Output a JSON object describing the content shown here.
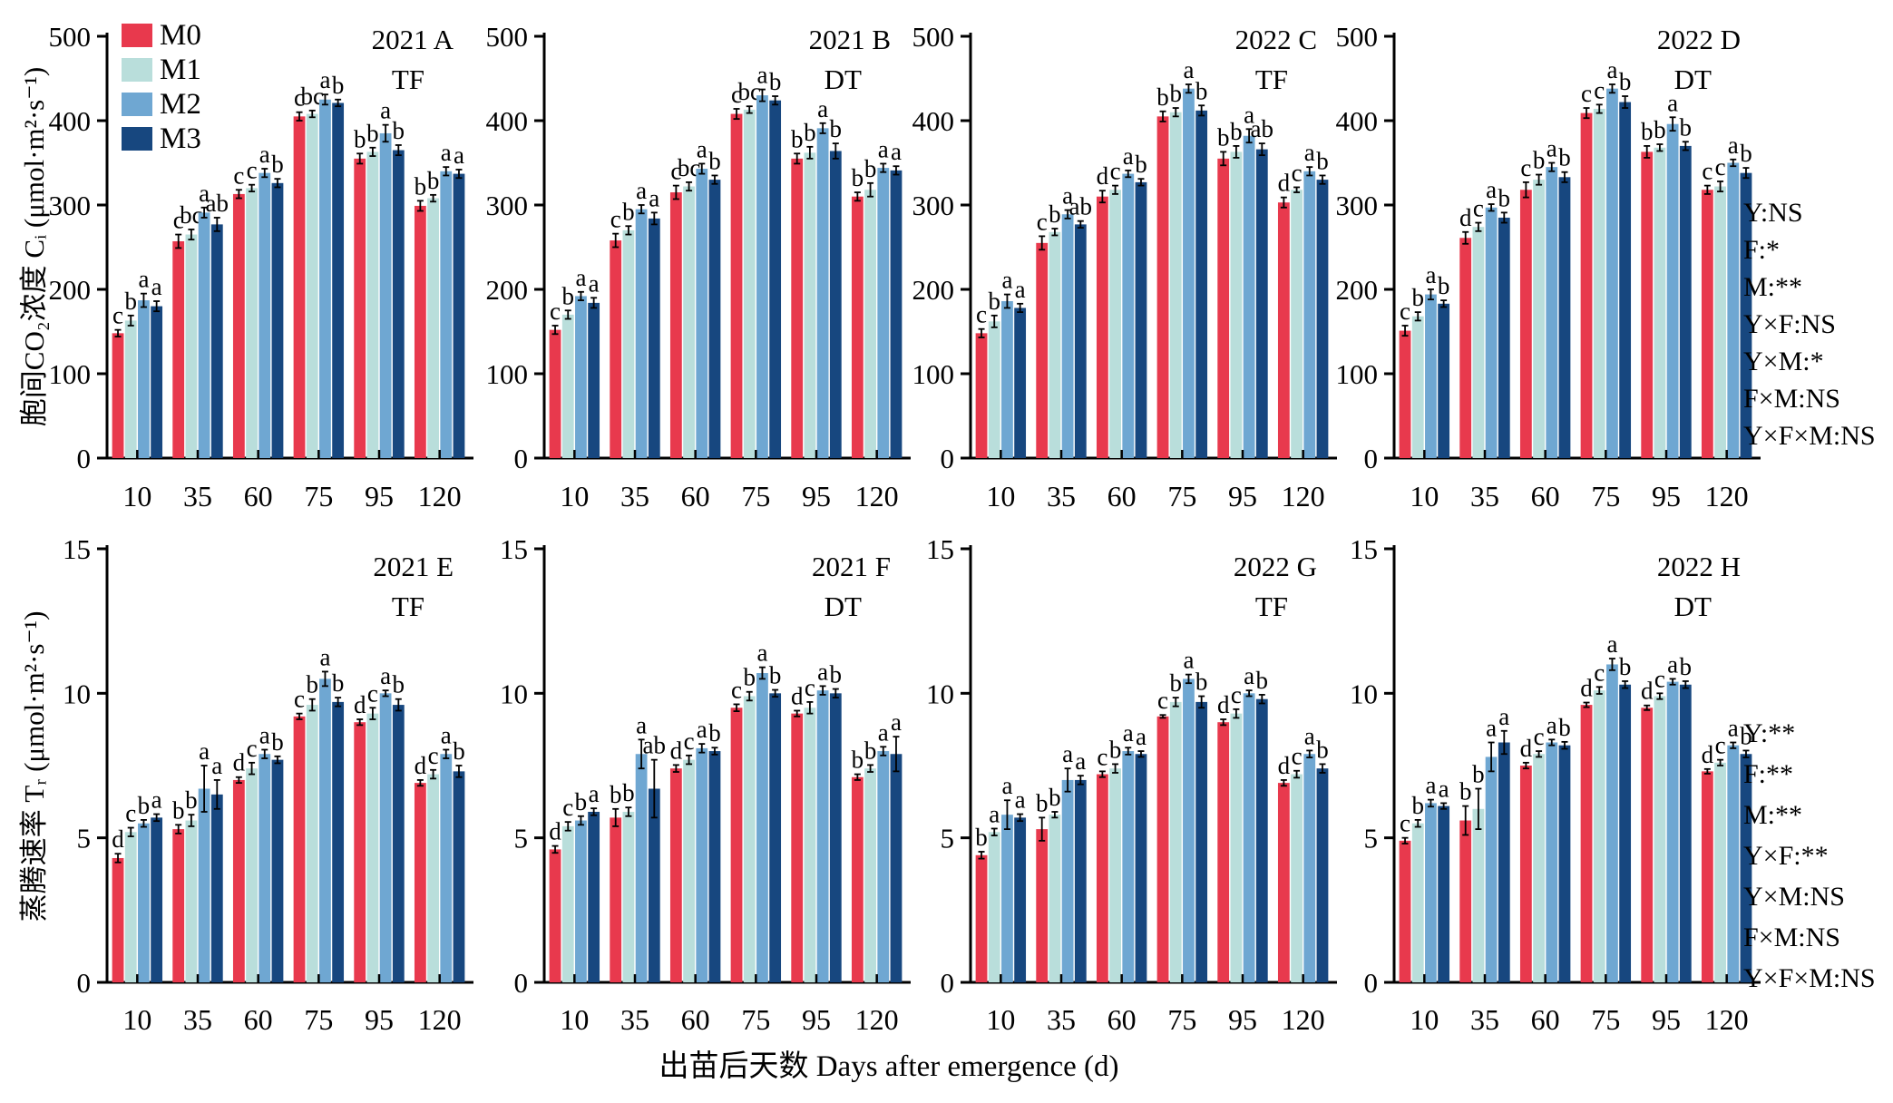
{
  "labels": {
    "x": "出苗后天数 Days after emergence (d)",
    "y_top": "胞间CO₂浓度 Cᵢ (μmol·m²·s⁻¹)",
    "y_bottom": "蒸腾速率 Tᵣ (μmol·m²·s⁻¹)"
  },
  "legend": {
    "items": [
      {
        "label": "M0",
        "color": "#e8394d"
      },
      {
        "label": "M1",
        "color": "#b9dedb"
      },
      {
        "label": "M2",
        "color": "#6fa7d2"
      },
      {
        "label": "M3",
        "color": "#17477f"
      }
    ]
  },
  "stats": {
    "top": [
      "Y:NS",
      "F:*",
      "M:**",
      "Y×F:NS",
      "Y×M:*",
      "F×M:NS",
      "Y×F×M:NS"
    ],
    "bottom": [
      "Y:**",
      "F:**",
      "M:**",
      "Y×F:**",
      "Y×M:NS",
      "F×M:NS",
      "Y×F×M:NS"
    ]
  },
  "chart_data": [
    {
      "id": "A",
      "type": "bar",
      "row": "top",
      "year": "2021",
      "panel_letter": "A",
      "treatment": "TF",
      "ylim": [
        0,
        500
      ],
      "yticks": [
        0,
        100,
        200,
        300,
        400,
        500
      ],
      "categories": [
        10,
        35,
        60,
        75,
        95,
        120
      ],
      "show_legend": true,
      "series": [
        {
          "name": "M0",
          "values": [
            148,
            257,
            313,
            405,
            355,
            299
          ],
          "errors": [
            4,
            8,
            5,
            5,
            6,
            6
          ],
          "letters": [
            "c",
            "c",
            "c",
            "c",
            "b",
            "b"
          ]
        },
        {
          "name": "M1",
          "values": [
            163,
            265,
            320,
            408,
            363,
            308
          ],
          "errors": [
            6,
            6,
            4,
            4,
            5,
            4
          ],
          "letters": [
            "b",
            "bc",
            "c",
            "bc",
            "b",
            "b"
          ]
        },
        {
          "name": "M2",
          "values": [
            187,
            291,
            338,
            425,
            385,
            340
          ],
          "errors": [
            8,
            6,
            5,
            6,
            10,
            5
          ],
          "letters": [
            "a",
            "a",
            "a",
            "a",
            "a",
            "a"
          ]
        },
        {
          "name": "M3",
          "values": [
            180,
            277,
            326,
            421,
            365,
            337
          ],
          "errors": [
            6,
            8,
            5,
            4,
            6,
            5
          ],
          "letters": [
            "a",
            "ab",
            "b",
            "b",
            "b",
            "a"
          ]
        }
      ]
    },
    {
      "id": "B",
      "type": "bar",
      "row": "top",
      "year": "2021",
      "panel_letter": "B",
      "treatment": "DT",
      "ylim": [
        0,
        500
      ],
      "yticks": [
        0,
        100,
        200,
        300,
        400,
        500
      ],
      "categories": [
        10,
        35,
        60,
        75,
        95,
        120
      ],
      "show_legend": false,
      "series": [
        {
          "name": "M0",
          "values": [
            152,
            258,
            315,
            408,
            355,
            310
          ],
          "errors": [
            5,
            8,
            8,
            6,
            6,
            5
          ],
          "letters": [
            "c",
            "c",
            "c",
            "c",
            "b",
            "b"
          ]
        },
        {
          "name": "M1",
          "values": [
            170,
            270,
            322,
            413,
            362,
            318
          ],
          "errors": [
            5,
            5,
            5,
            4,
            7,
            8
          ],
          "letters": [
            "b",
            "b",
            "bc",
            "bc",
            "b",
            "b"
          ]
        },
        {
          "name": "M2",
          "values": [
            192,
            295,
            343,
            430,
            391,
            344
          ],
          "errors": [
            5,
            5,
            6,
            7,
            6,
            5
          ],
          "letters": [
            "a",
            "a",
            "a",
            "a",
            "a",
            "a"
          ]
        },
        {
          "name": "M3",
          "values": [
            184,
            284,
            330,
            424,
            364,
            341
          ],
          "errors": [
            6,
            7,
            5,
            5,
            9,
            5
          ],
          "letters": [
            "a",
            "a",
            "b",
            "b",
            "b",
            "a"
          ]
        }
      ]
    },
    {
      "id": "C",
      "type": "bar",
      "row": "top",
      "year": "2022",
      "panel_letter": "C",
      "treatment": "TF",
      "ylim": [
        0,
        500
      ],
      "yticks": [
        0,
        100,
        200,
        300,
        400,
        500
      ],
      "categories": [
        10,
        35,
        60,
        75,
        95,
        120
      ],
      "show_legend": false,
      "series": [
        {
          "name": "M0",
          "values": [
            148,
            255,
            310,
            405,
            355,
            303
          ],
          "errors": [
            5,
            8,
            7,
            6,
            8,
            6
          ],
          "letters": [
            "c",
            "c",
            "d",
            "b",
            "b",
            "d"
          ]
        },
        {
          "name": "M1",
          "values": [
            162,
            268,
            318,
            410,
            363,
            318
          ],
          "errors": [
            7,
            4,
            5,
            5,
            7,
            3
          ],
          "letters": [
            "b",
            "b",
            "c",
            "b",
            "b",
            "c"
          ]
        },
        {
          "name": "M2",
          "values": [
            186,
            289,
            337,
            438,
            382,
            340
          ],
          "errors": [
            8,
            5,
            4,
            5,
            8,
            5
          ],
          "letters": [
            "a",
            "a",
            "a",
            "a",
            "a",
            "a"
          ]
        },
        {
          "name": "M3",
          "values": [
            178,
            277,
            327,
            412,
            366,
            330
          ],
          "errors": [
            5,
            4,
            4,
            6,
            7,
            5
          ],
          "letters": [
            "a",
            "ab",
            "b",
            "b",
            "ab",
            "b"
          ]
        }
      ]
    },
    {
      "id": "D",
      "type": "bar",
      "row": "top",
      "year": "2022",
      "panel_letter": "D",
      "treatment": "DT",
      "ylim": [
        0,
        500
      ],
      "yticks": [
        0,
        100,
        200,
        300,
        400,
        500
      ],
      "categories": [
        10,
        35,
        60,
        75,
        95,
        120
      ],
      "show_legend": false,
      "stats_ref": "top",
      "series": [
        {
          "name": "M0",
          "values": [
            151,
            261,
            318,
            409,
            363,
            318
          ],
          "errors": [
            6,
            7,
            9,
            6,
            7,
            5
          ],
          "letters": [
            "c",
            "d",
            "c",
            "c",
            "b",
            "c"
          ]
        },
        {
          "name": "M1",
          "values": [
            168,
            274,
            330,
            414,
            368,
            322
          ],
          "errors": [
            5,
            5,
            6,
            5,
            4,
            6
          ],
          "letters": [
            "b",
            "c",
            "b",
            "c",
            "b",
            "c"
          ]
        },
        {
          "name": "M2",
          "values": [
            194,
            297,
            345,
            438,
            396,
            350
          ],
          "errors": [
            6,
            4,
            5,
            5,
            8,
            4
          ],
          "letters": [
            "a",
            "a",
            "a",
            "a",
            "a",
            "a"
          ]
        },
        {
          "name": "M3",
          "values": [
            183,
            285,
            333,
            422,
            370,
            338
          ],
          "errors": [
            4,
            6,
            6,
            7,
            5,
            6
          ],
          "letters": [
            "b",
            "b",
            "b",
            "b",
            "b",
            "b"
          ]
        }
      ]
    },
    {
      "id": "E",
      "type": "bar",
      "row": "bottom",
      "year": "2021",
      "panel_letter": "E",
      "treatment": "TF",
      "ylim": [
        0,
        15
      ],
      "yticks": [
        0,
        5,
        10,
        15
      ],
      "categories": [
        10,
        35,
        60,
        75,
        95,
        120
      ],
      "show_legend": false,
      "series": [
        {
          "name": "M0",
          "values": [
            4.3,
            5.3,
            7.0,
            9.2,
            9.0,
            6.9
          ],
          "errors": [
            0.15,
            0.15,
            0.1,
            0.1,
            0.1,
            0.1
          ],
          "letters": [
            "d",
            "b",
            "d",
            "c",
            "d",
            "d"
          ]
        },
        {
          "name": "M1",
          "values": [
            5.2,
            5.6,
            7.4,
            9.6,
            9.3,
            7.2
          ],
          "errors": [
            0.15,
            0.2,
            0.2,
            0.2,
            0.2,
            0.15
          ],
          "letters": [
            "c",
            "b",
            "c",
            "b",
            "c",
            "c"
          ]
        },
        {
          "name": "M2",
          "values": [
            5.5,
            6.7,
            7.9,
            10.5,
            10.0,
            7.9
          ],
          "errors": [
            0.12,
            0.8,
            0.15,
            0.25,
            0.1,
            0.15
          ],
          "letters": [
            "b",
            "a",
            "a",
            "a",
            "a",
            "a"
          ]
        },
        {
          "name": "M3",
          "values": [
            5.7,
            6.5,
            7.7,
            9.7,
            9.6,
            7.3
          ],
          "errors": [
            0.12,
            0.5,
            0.12,
            0.15,
            0.2,
            0.2
          ],
          "letters": [
            "a",
            "a",
            "b",
            "b",
            "b",
            "b"
          ]
        }
      ]
    },
    {
      "id": "F",
      "type": "bar",
      "row": "bottom",
      "year": "2021",
      "panel_letter": "F",
      "treatment": "DT",
      "ylim": [
        0,
        15
      ],
      "yticks": [
        0,
        5,
        10,
        15
      ],
      "categories": [
        10,
        35,
        60,
        75,
        95,
        120
      ],
      "show_legend": false,
      "series": [
        {
          "name": "M0",
          "values": [
            4.6,
            5.7,
            7.4,
            9.5,
            9.3,
            7.1
          ],
          "errors": [
            0.12,
            0.3,
            0.12,
            0.12,
            0.1,
            0.1
          ],
          "letters": [
            "d",
            "b",
            "d",
            "c",
            "d",
            "b"
          ]
        },
        {
          "name": "M1",
          "values": [
            5.4,
            5.9,
            7.7,
            9.9,
            9.5,
            7.4
          ],
          "errors": [
            0.15,
            0.15,
            0.15,
            0.15,
            0.2,
            0.12
          ],
          "letters": [
            "c",
            "b",
            "c",
            "b",
            "c",
            "b"
          ]
        },
        {
          "name": "M2",
          "values": [
            5.6,
            7.9,
            8.1,
            10.7,
            10.1,
            8.0
          ],
          "errors": [
            0.15,
            0.5,
            0.15,
            0.2,
            0.15,
            0.15
          ],
          "letters": [
            "b",
            "a",
            "a",
            "a",
            "a",
            "a"
          ]
        },
        {
          "name": "M3",
          "values": [
            5.9,
            6.7,
            8.0,
            10.0,
            10.0,
            7.9
          ],
          "errors": [
            0.12,
            1.0,
            0.12,
            0.12,
            0.15,
            0.6
          ],
          "letters": [
            "a",
            "ab",
            "b",
            "b",
            "b",
            "a"
          ]
        }
      ]
    },
    {
      "id": "G",
      "type": "bar",
      "row": "bottom",
      "year": "2022",
      "panel_letter": "G",
      "treatment": "TF",
      "ylim": [
        0,
        15
      ],
      "yticks": [
        0,
        5,
        10,
        15
      ],
      "categories": [
        10,
        35,
        60,
        75,
        95,
        120
      ],
      "show_legend": false,
      "series": [
        {
          "name": "M0",
          "values": [
            4.4,
            5.3,
            7.2,
            9.2,
            9.0,
            6.9
          ],
          "errors": [
            0.12,
            0.4,
            0.1,
            0.05,
            0.1,
            0.1
          ],
          "letters": [
            "b",
            "b",
            "c",
            "c",
            "d",
            "d"
          ]
        },
        {
          "name": "M1",
          "values": [
            5.2,
            5.8,
            7.4,
            9.7,
            9.3,
            7.2
          ],
          "errors": [
            0.12,
            0.1,
            0.15,
            0.15,
            0.15,
            0.12
          ],
          "letters": [
            "a",
            "b",
            "b",
            "b",
            "c",
            "c"
          ]
        },
        {
          "name": "M2",
          "values": [
            5.8,
            7.0,
            8.0,
            10.5,
            10.0,
            7.9
          ],
          "errors": [
            0.5,
            0.4,
            0.12,
            0.15,
            0.1,
            0.12
          ],
          "letters": [
            "a",
            "a",
            "a",
            "a",
            "a",
            "a"
          ]
        },
        {
          "name": "M3",
          "values": [
            5.7,
            7.0,
            7.9,
            9.7,
            9.8,
            7.4
          ],
          "errors": [
            0.12,
            0.15,
            0.1,
            0.2,
            0.15,
            0.15
          ],
          "letters": [
            "a",
            "a",
            "a",
            "b",
            "b",
            "b"
          ]
        }
      ]
    },
    {
      "id": "H",
      "type": "bar",
      "row": "bottom",
      "year": "2022",
      "panel_letter": "H",
      "treatment": "DT",
      "ylim": [
        0,
        15
      ],
      "yticks": [
        0,
        5,
        10,
        15
      ],
      "categories": [
        10,
        35,
        60,
        75,
        95,
        120
      ],
      "show_legend": false,
      "stats_ref": "bottom",
      "series": [
        {
          "name": "M0",
          "values": [
            4.9,
            5.6,
            7.5,
            9.6,
            9.5,
            7.3
          ],
          "errors": [
            0.1,
            0.5,
            0.1,
            0.08,
            0.08,
            0.08
          ],
          "letters": [
            "c",
            "b",
            "d",
            "d",
            "d",
            "d"
          ]
        },
        {
          "name": "M1",
          "values": [
            5.5,
            6.0,
            7.9,
            10.1,
            9.9,
            7.6
          ],
          "errors": [
            0.12,
            0.7,
            0.1,
            0.12,
            0.1,
            0.1
          ],
          "letters": [
            "b",
            "b",
            "c",
            "c",
            "c",
            "c"
          ]
        },
        {
          "name": "M2",
          "values": [
            6.2,
            7.8,
            8.3,
            11.0,
            10.4,
            8.2
          ],
          "errors": [
            0.12,
            0.5,
            0.1,
            0.2,
            0.1,
            0.1
          ],
          "letters": [
            "a",
            "a",
            "a",
            "a",
            "a",
            "a"
          ]
        },
        {
          "name": "M3",
          "values": [
            6.1,
            8.3,
            8.2,
            10.3,
            10.3,
            7.9
          ],
          "errors": [
            0.1,
            0.4,
            0.12,
            0.12,
            0.12,
            0.12
          ],
          "letters": [
            "a",
            "a",
            "b",
            "b",
            "b",
            "b"
          ]
        }
      ]
    }
  ]
}
